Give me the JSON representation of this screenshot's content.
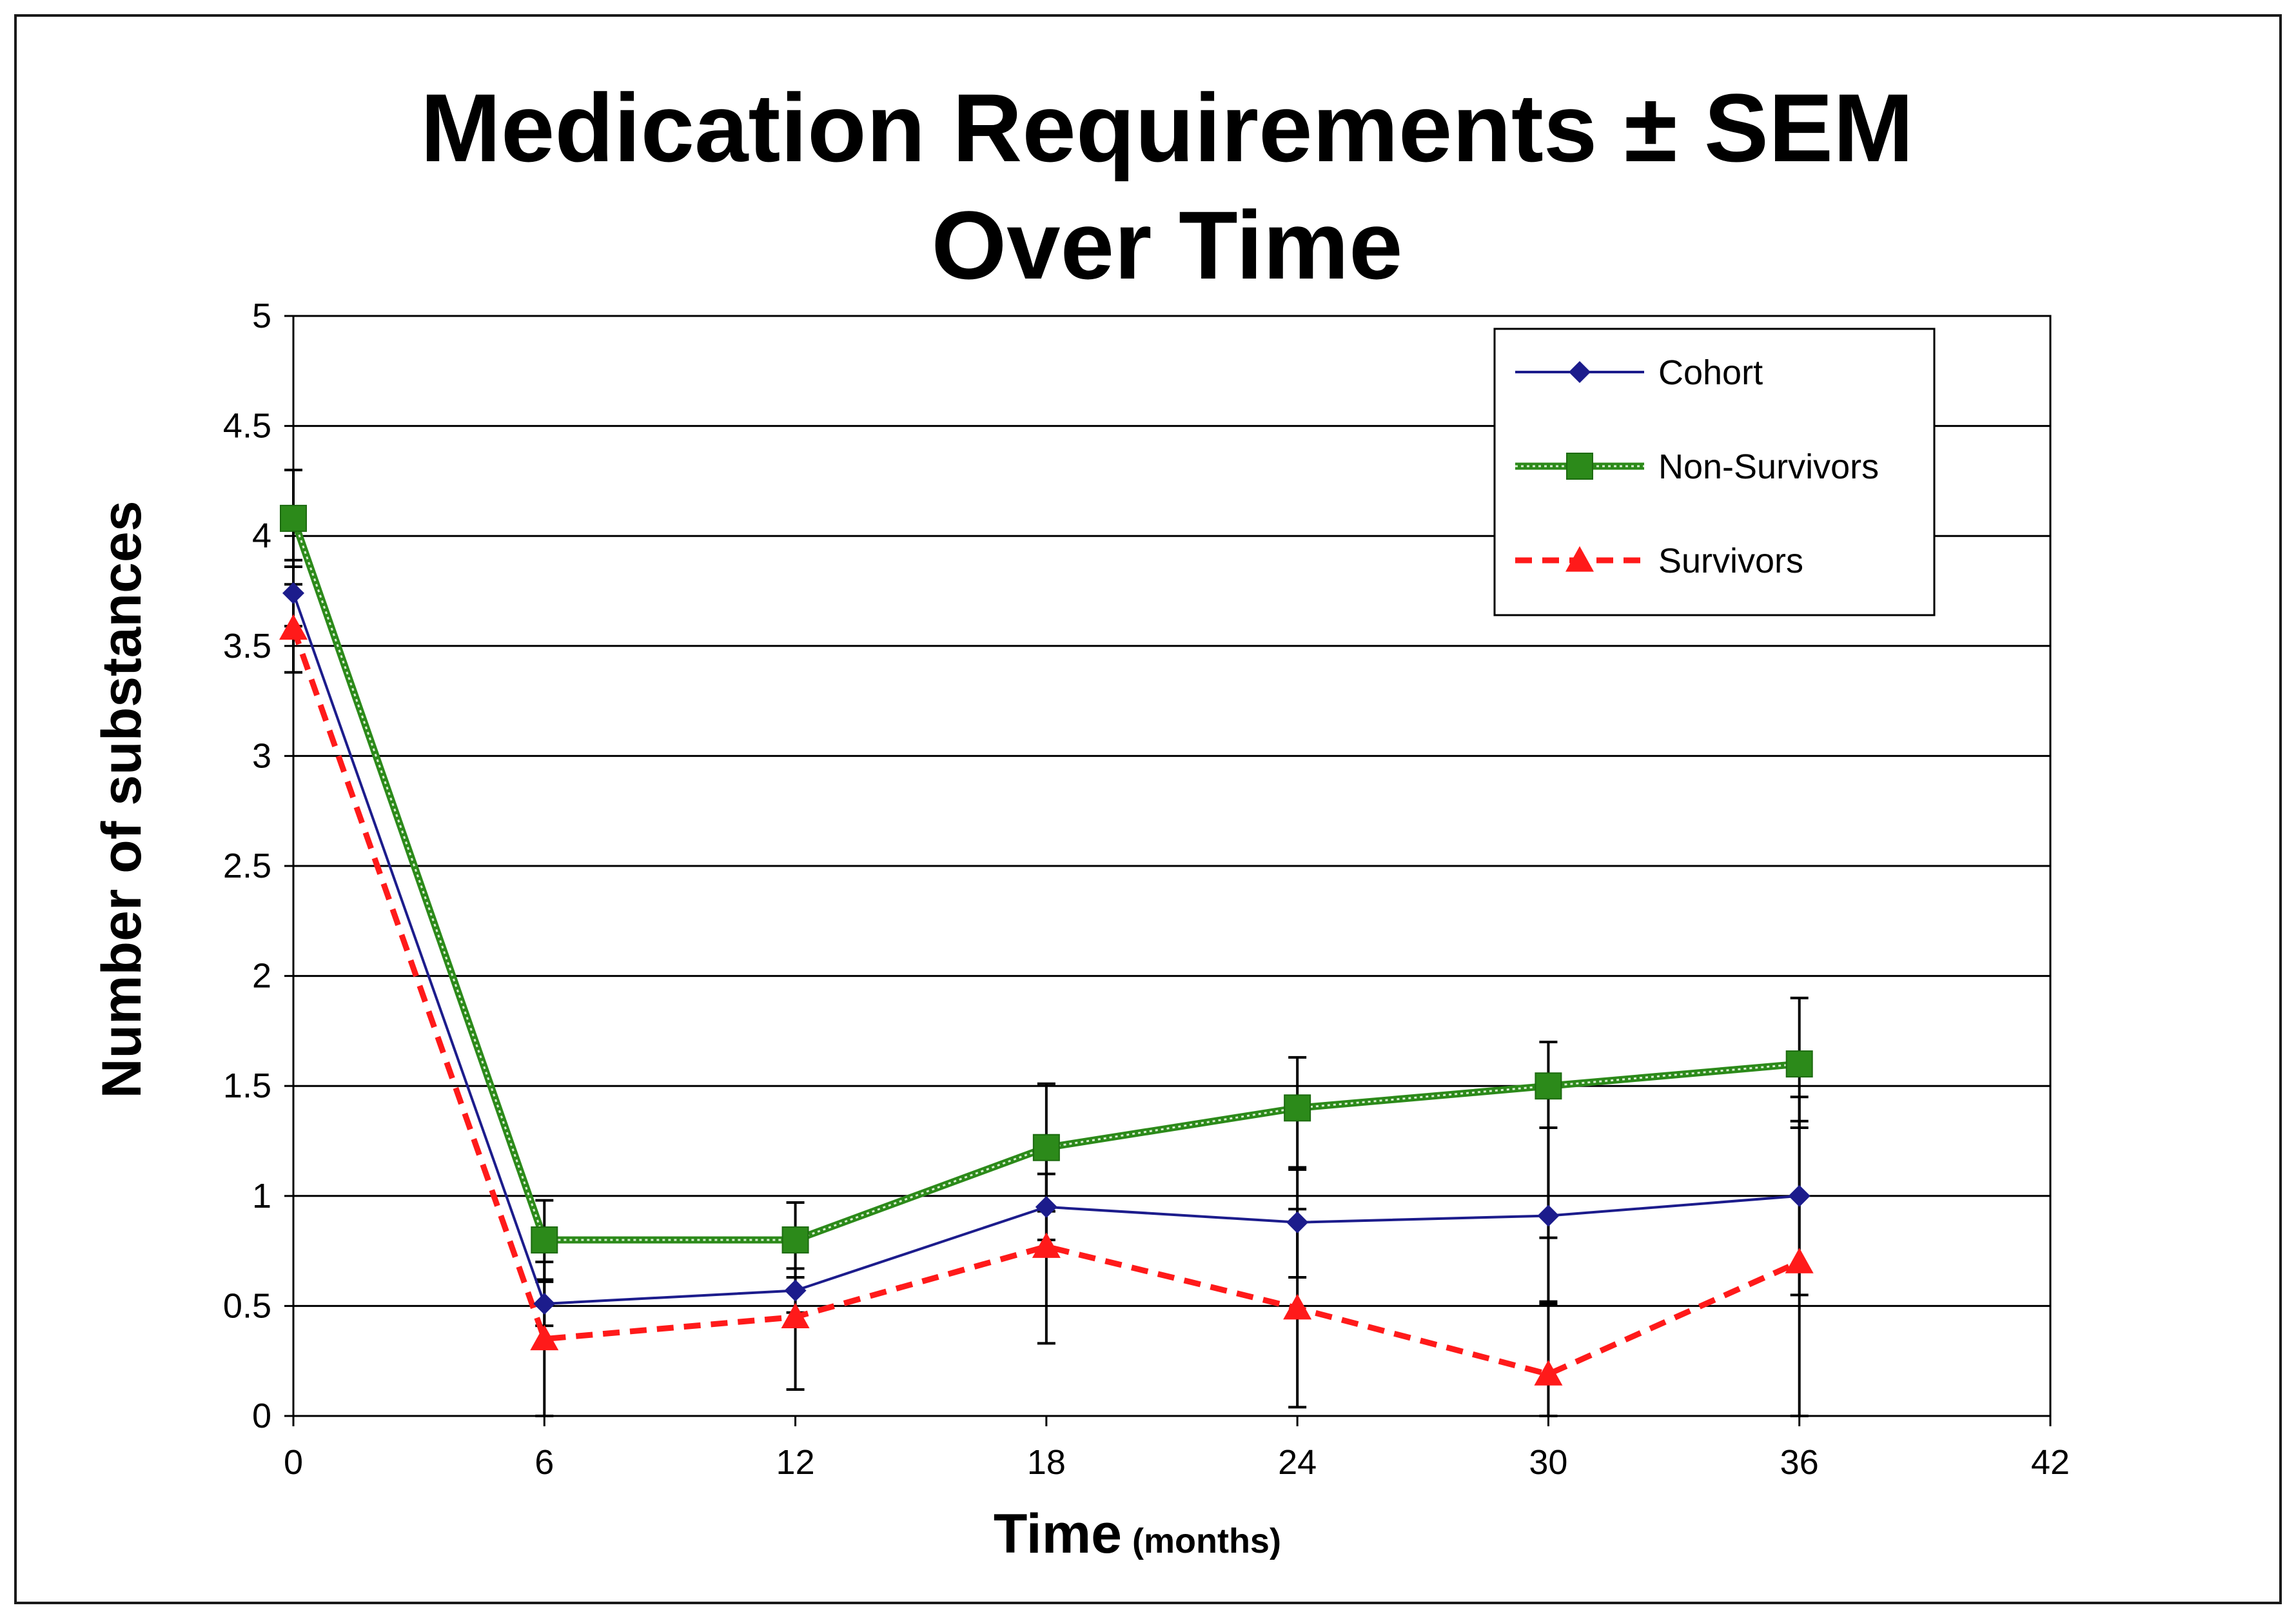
{
  "chart_data": {
    "type": "line",
    "title_lines": [
      "Medication Requirements  ± SEM",
      "Over Time"
    ],
    "xlabel": "Time",
    "xlabel_unit": "(months)",
    "ylabel": "Number of substances",
    "xlim": [
      0,
      42
    ],
    "ylim": [
      0,
      5
    ],
    "x_ticks": [
      0,
      6,
      12,
      18,
      24,
      30,
      36,
      42
    ],
    "y_ticks": [
      0,
      0.5,
      1,
      1.5,
      2,
      2.5,
      3,
      3.5,
      4,
      4.5,
      5
    ],
    "y_tick_labels": [
      "0",
      "0.5",
      "1",
      "1.5",
      "2",
      "2.5",
      "3",
      "3.5",
      "4",
      "4.5",
      "5"
    ],
    "grid": true,
    "legend_position": "top-right",
    "series": [
      {
        "name": "Cohort",
        "color": "#1c1c8c",
        "marker": "diamond",
        "line_style": "solid",
        "x": [
          0,
          6,
          12,
          18,
          24,
          30,
          36
        ],
        "y": [
          3.74,
          0.51,
          0.57,
          0.95,
          0.88,
          0.91,
          1.0
        ],
        "error_minus": [
          0.15,
          0.1,
          0.1,
          0.15,
          0.25,
          0.4,
          0.45
        ],
        "error_plus": [
          0.15,
          0.1,
          0.1,
          0.15,
          0.25,
          0.4,
          0.45
        ]
      },
      {
        "name": "Non-Survivors",
        "color": "#2c8a1a",
        "marker": "square",
        "line_style": "double-dotted",
        "x": [
          0,
          6,
          12,
          18,
          24,
          30,
          36
        ],
        "y": [
          4.08,
          0.8,
          0.8,
          1.22,
          1.4,
          1.5,
          1.6
        ],
        "error_minus": [
          0.22,
          0.18,
          0.17,
          0.29,
          0.28,
          0.69,
          0.29
        ],
        "error_plus": [
          0.22,
          0.18,
          0.17,
          0.29,
          0.23,
          0.2,
          0.3
        ]
      },
      {
        "name": "Survivors",
        "color": "#ff1a1a",
        "marker": "triangle",
        "line_style": "dashed",
        "x": [
          0,
          6,
          12,
          18,
          24,
          30,
          36
        ],
        "y": [
          3.58,
          0.35,
          0.45,
          0.77,
          0.49,
          0.19,
          0.7
        ],
        "error_minus": [
          0.2,
          0.35,
          0.33,
          0.44,
          0.45,
          0.19,
          0.7
        ],
        "error_plus": [
          0.2,
          0.35,
          0.33,
          0.44,
          0.45,
          0.33,
          0.64
        ]
      }
    ]
  }
}
